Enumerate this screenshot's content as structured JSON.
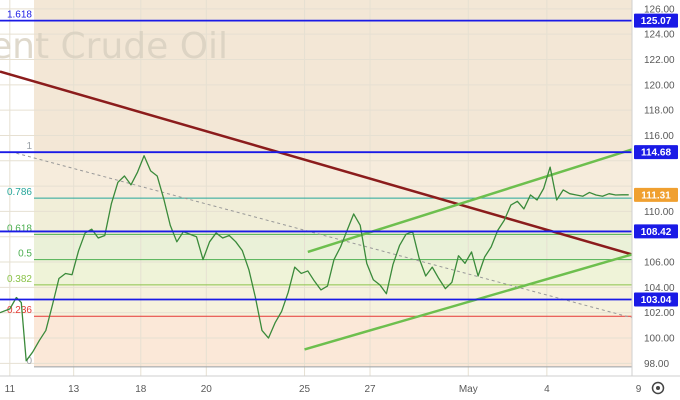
{
  "chart_data": {
    "type": "line",
    "watermark": "ent Crude Oil",
    "ylim": [
      97,
      126.7
    ],
    "y_ticks": [
      "98.00",
      "100.00",
      "102.00",
      "104.00",
      "106.00",
      "108.00",
      "110.00",
      "112.00",
      "114.00",
      "116.00",
      "118.00",
      "120.00",
      "122.00",
      "124.00",
      "126.00"
    ],
    "x_ticks": [
      {
        "label": "11",
        "x": 0
      },
      {
        "label": "13",
        "x": 1.95
      },
      {
        "label": "18",
        "x": 4.0
      },
      {
        "label": "20",
        "x": 6.0
      },
      {
        "label": "25",
        "x": 9.0
      },
      {
        "label": "27",
        "x": 11.0
      },
      {
        "label": "May",
        "x": 14.0
      },
      {
        "label": "4",
        "x": 16.4
      },
      {
        "label": "9",
        "x": 19.2
      }
    ],
    "xlim": [
      -0.3,
      19.0
    ],
    "horizontal_levels": [
      {
        "value": 125.07,
        "label": "125.07",
        "color": "#1a1ae6"
      },
      {
        "value": 114.68,
        "label": "114.68",
        "color": "#1a1ae6"
      },
      {
        "value": 108.42,
        "label": "108.42",
        "color": "#1a1ae6"
      },
      {
        "value": 103.04,
        "label": "103.04",
        "color": "#1a1ae6"
      }
    ],
    "last_price": {
      "value": 111.31,
      "label": "111.31",
      "color": "#f0a030"
    },
    "fibonacci": [
      {
        "ratio": "1.618",
        "value": 125.07,
        "color": "#1a1ae6",
        "band": "#f3e7d6"
      },
      {
        "ratio": "1",
        "value": 114.68,
        "color": "#9aa0a6",
        "band": "#f6ecdc"
      },
      {
        "ratio": "0.786",
        "value": 111.05,
        "color": "#26a69a",
        "band": "#f1eed8"
      },
      {
        "ratio": "0.618",
        "value": 108.19,
        "color": "#4caf50",
        "band": "#eaf1d8"
      },
      {
        "ratio": "0.5",
        "value": 106.19,
        "color": "#4caf50",
        "band": "#eff3d8"
      },
      {
        "ratio": "0.382",
        "value": 104.2,
        "color": "#8bc34a",
        "band": "#f6f2dd"
      },
      {
        "ratio": "0.236",
        "value": 101.72,
        "color": "#e53935",
        "band": "#fbe8d8"
      },
      {
        "ratio": "0",
        "value": 97.72,
        "color": "#9aa0a6",
        "band": ""
      }
    ],
    "trendlines": [
      {
        "name": "resistance",
        "color": "#8b1c1c",
        "from": [
          -0.3,
          121.05
        ],
        "to": [
          19.0,
          106.6
        ]
      },
      {
        "name": "channel-upper",
        "color": "#6dbf4e",
        "from": [
          9.1,
          106.8
        ],
        "to": [
          19.0,
          114.9
        ]
      },
      {
        "name": "channel-lower",
        "color": "#6dbf4e",
        "from": [
          9.0,
          99.1
        ],
        "to": [
          19.0,
          106.6
        ]
      },
      {
        "name": "fib-diagonal",
        "color": "#999999",
        "from": [
          0.2,
          114.6
        ],
        "to": [
          19.0,
          101.6
        ]
      }
    ],
    "series": [
      {
        "name": "",
        "color": "#3a8a3a",
        "x": [
          -0.3,
          0,
          0.2,
          0.35,
          0.5,
          0.7,
          0.9,
          1.1,
          1.3,
          1.5,
          1.7,
          1.9,
          2.1,
          2.3,
          2.5,
          2.7,
          2.9,
          3.1,
          3.3,
          3.5,
          3.7,
          3.9,
          4.1,
          4.3,
          4.5,
          4.7,
          4.9,
          5.1,
          5.3,
          5.5,
          5.7,
          5.9,
          6.1,
          6.3,
          6.5,
          6.7,
          6.9,
          7.1,
          7.3,
          7.5,
          7.7,
          7.9,
          8.1,
          8.3,
          8.5,
          8.7,
          8.9,
          9.1,
          9.3,
          9.5,
          9.7,
          9.9,
          10.1,
          10.3,
          10.5,
          10.7,
          10.9,
          11.1,
          11.3,
          11.5,
          11.7,
          11.9,
          12.1,
          12.3,
          12.5,
          12.7,
          12.9,
          13.1,
          13.3,
          13.5,
          13.7,
          13.9,
          14.1,
          14.3,
          14.5,
          14.7,
          14.9,
          15.1,
          15.3,
          15.5,
          15.7,
          15.9,
          16.1,
          16.3,
          16.5,
          16.7,
          16.9,
          17.1,
          17.3,
          17.5,
          17.7,
          17.9,
          18.1,
          18.3,
          18.5,
          18.7,
          18.9
        ],
        "values": [
          102.0,
          102.3,
          103.2,
          102.8,
          98.2,
          98.9,
          99.8,
          100.6,
          102.6,
          104.7,
          105.1,
          105.0,
          106.9,
          108.3,
          108.6,
          107.9,
          108.1,
          110.6,
          112.3,
          112.8,
          112.1,
          113.1,
          114.4,
          113.2,
          112.8,
          111.0,
          108.9,
          107.6,
          108.4,
          108.2,
          108.0,
          106.2,
          107.6,
          108.3,
          107.9,
          108.1,
          107.6,
          106.9,
          105.4,
          103.2,
          100.6,
          100.0,
          101.2,
          102.1,
          103.6,
          105.6,
          105.1,
          105.3,
          104.5,
          103.8,
          104.1,
          106.2,
          107.2,
          108.5,
          109.8,
          108.9,
          105.9,
          104.6,
          104.2,
          103.5,
          105.8,
          107.3,
          108.2,
          108.4,
          106.3,
          104.9,
          105.6,
          104.7,
          103.9,
          104.4,
          106.5,
          105.9,
          106.8,
          104.9,
          106.4,
          107.2,
          108.5,
          109.3,
          110.5,
          110.8,
          110.2,
          111.3,
          110.9,
          111.8,
          113.5,
          110.9,
          111.7,
          111.4,
          111.3,
          111.2,
          111.5,
          111.3,
          111.2,
          111.4,
          111.3,
          111.31,
          111.31
        ]
      }
    ]
  }
}
